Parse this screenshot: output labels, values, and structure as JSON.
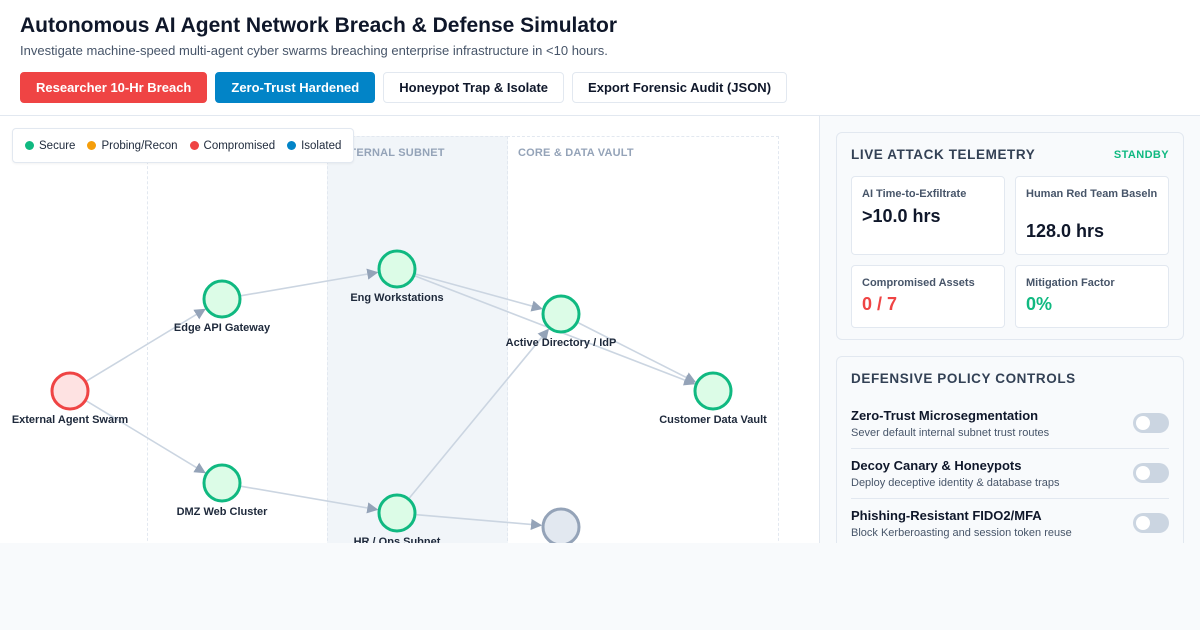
{
  "header": {
    "title": "Autonomous AI Agent Network Breach & Defense Simulator",
    "subtitle": "Investigate machine-speed multi-agent cyber swarms breaching enterprise infrastructure in <10 hours.",
    "buttons": [
      {
        "label": "Researcher 10-Hr Breach",
        "style": "red"
      },
      {
        "label": "Zero-Trust Hardened",
        "style": "blue"
      },
      {
        "label": "Honeypot Trap & Isolate",
        "style": "default"
      },
      {
        "label": "Export Forensic Audit (JSON)",
        "style": "default"
      }
    ]
  },
  "legend": [
    {
      "label": "Secure",
      "color": "#10b981"
    },
    {
      "label": "Probing/Recon",
      "color": "#f59e0b"
    },
    {
      "label": "Compromised",
      "color": "#ef4444"
    },
    {
      "label": "Isolated",
      "color": "#0284c7"
    }
  ],
  "zones": [
    {
      "label": ""
    },
    {
      "label": "INTERNAL SUBNET"
    },
    {
      "label": "CORE & DATA VAULT"
    }
  ],
  "network": {
    "nodes": [
      {
        "id": "swarm",
        "label": "External Agent Swarm",
        "status": "compromised"
      },
      {
        "id": "api",
        "label": "Edge API Gateway",
        "status": "secure"
      },
      {
        "id": "dmz",
        "label": "DMZ Web Cluster",
        "status": "secure"
      },
      {
        "id": "eng",
        "label": "Eng Workstations",
        "status": "secure"
      },
      {
        "id": "hr",
        "label": "HR / Ops Subnet",
        "status": "secure"
      },
      {
        "id": "ad",
        "label": "Active Directory / IdP",
        "status": "secure"
      },
      {
        "id": "vault",
        "label": "Customer Data Vault",
        "status": "secure"
      },
      {
        "id": "unknown",
        "label": "",
        "status": "neutral"
      }
    ],
    "edges": [
      [
        "swarm",
        "api"
      ],
      [
        "swarm",
        "dmz"
      ],
      [
        "api",
        "eng"
      ],
      [
        "dmz",
        "hr"
      ],
      [
        "eng",
        "ad"
      ],
      [
        "eng",
        "vault"
      ],
      [
        "ad",
        "vault"
      ],
      [
        "hr",
        "ad"
      ],
      [
        "hr",
        "unknown"
      ]
    ]
  },
  "telemetry": {
    "title": "LIVE ATTACK TELEMETRY",
    "status": "STANDBY",
    "metrics": [
      {
        "label": "AI Time-to-Exfiltrate",
        "value": ">10.0 hrs",
        "color": "#0f172a"
      },
      {
        "label": "Human Red Team Baseln",
        "value": "128.0 hrs",
        "color": "#0f172a"
      },
      {
        "label": "Compromised Assets",
        "value": "0 / 7",
        "color": "#ef4444"
      },
      {
        "label": "Mitigation Factor",
        "value": "0%",
        "color": "#10b981"
      }
    ]
  },
  "controls": {
    "title": "DEFENSIVE POLICY CONTROLS",
    "items": [
      {
        "title": "Zero-Trust Microsegmentation",
        "desc": "Sever default internal subnet trust routes",
        "enabled": false
      },
      {
        "title": "Decoy Canary & Honeypots",
        "desc": "Deploy deceptive identity & database traps",
        "enabled": false
      },
      {
        "title": "Phishing-Resistant FIDO2/MFA",
        "desc": "Block Kerberoasting and session token reuse",
        "enabled": false
      }
    ]
  }
}
